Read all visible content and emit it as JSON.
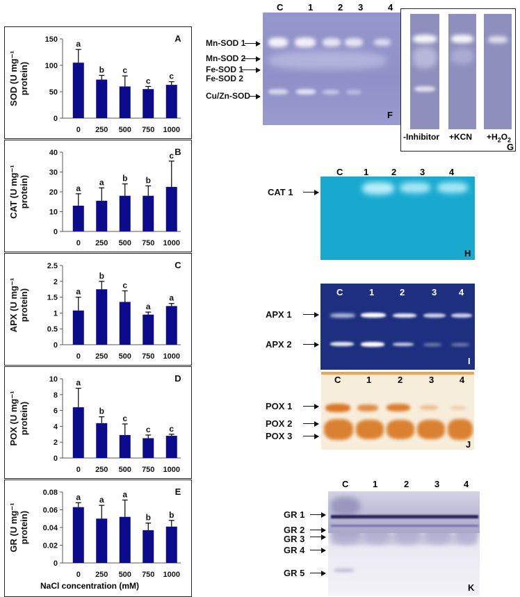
{
  "x_axis_title": "NaCl concentration (mM)",
  "colors": {
    "bar": "#0b0b8c",
    "sod_gel": "#8d8fc6",
    "cat_gel": "#1aaed4",
    "apx_gel": "#1b2e7c",
    "pox_gel": "#f6ead5",
    "gr_gel": "#e7e6f0"
  },
  "chart_data": [
    {
      "type": "bar",
      "panel": "A",
      "ylabel": "SOD (U mg-1 protein)",
      "ylabel_lines": [
        "SOD (U mg⁻¹",
        "protein)"
      ],
      "categories": [
        "0",
        "250",
        "500",
        "750",
        "1000"
      ],
      "values": [
        105,
        73,
        60,
        55,
        63
      ],
      "errors": [
        25,
        8,
        20,
        5,
        6
      ],
      "letters": [
        "a",
        "b",
        "c",
        "c",
        "c"
      ],
      "ylim": [
        0,
        150
      ],
      "yticks": [
        0,
        50,
        100,
        150
      ],
      "ytick_labels": [
        "0",
        "50",
        "100",
        "150"
      ]
    },
    {
      "type": "bar",
      "panel": "B",
      "ylabel": "CAT (U mg-1 protein)",
      "ylabel_lines": [
        "CAT (U mg⁻¹",
        "protein)"
      ],
      "categories": [
        "0",
        "250",
        "500",
        "750",
        "1000"
      ],
      "values": [
        13,
        15.5,
        18,
        18,
        22.5
      ],
      "errors": [
        6,
        6.5,
        6,
        5,
        13
      ],
      "letters": [
        "a",
        "a",
        "b",
        "b",
        "c"
      ],
      "ylim": [
        0,
        40
      ],
      "yticks": [
        0,
        10,
        20,
        30,
        40
      ],
      "ytick_labels": [
        "0",
        "10",
        "20",
        "30",
        "40"
      ]
    },
    {
      "type": "bar",
      "panel": "C",
      "ylabel": "APX (U mg-1 protein)",
      "ylabel_lines": [
        "APX (U mg⁻¹",
        "protein)"
      ],
      "categories": [
        "0",
        "250",
        "500",
        "750",
        "1000"
      ],
      "values": [
        1.08,
        1.75,
        1.35,
        0.95,
        1.22
      ],
      "errors": [
        0.42,
        0.25,
        0.35,
        0.08,
        0.08
      ],
      "letters": [
        "a",
        "b",
        "c",
        "a",
        "a"
      ],
      "ylim": [
        0,
        2.5
      ],
      "yticks": [
        0,
        0.5,
        1,
        1.5,
        2,
        2.5
      ],
      "ytick_labels": [
        "0",
        "0.5",
        "1",
        "1.5",
        "2",
        "2.5"
      ]
    },
    {
      "type": "bar",
      "panel": "D",
      "ylabel": "POX (U mg-1 protein)",
      "ylabel_lines": [
        "POX (U mg⁻¹",
        "protein)"
      ],
      "categories": [
        "0",
        "250",
        "500",
        "750",
        "1000"
      ],
      "values": [
        6.4,
        4.4,
        2.9,
        2.5,
        2.8
      ],
      "errors": [
        2.4,
        0.8,
        1.4,
        0.4,
        0.2
      ],
      "letters": [
        "a",
        "b",
        "c",
        "c",
        "c"
      ],
      "ylim": [
        0,
        10
      ],
      "yticks": [
        0,
        2,
        4,
        6,
        8,
        10
      ],
      "ytick_labels": [
        "0",
        "2",
        "4",
        "6",
        "8",
        "10"
      ]
    },
    {
      "type": "bar",
      "panel": "E",
      "ylabel": "GR (U mg-1 protein)",
      "ylabel_lines": [
        "GR (U mg⁻¹",
        "protein)"
      ],
      "categories": [
        "0",
        "250",
        "500",
        "750",
        "1000"
      ],
      "values": [
        0.063,
        0.05,
        0.052,
        0.037,
        0.041
      ],
      "errors": [
        0.005,
        0.015,
        0.019,
        0.008,
        0.007
      ],
      "letters": [
        "a",
        "a",
        "a",
        "b",
        "b"
      ],
      "ylim": [
        0,
        0.08
      ],
      "yticks": [
        0,
        0.02,
        0.04,
        0.06,
        0.08
      ],
      "ytick_labels": [
        "0",
        "0.02",
        "0.04",
        "0.06",
        "0.08"
      ]
    }
  ],
  "gels": {
    "F": {
      "panel": "F",
      "lanes": [
        "C",
        "1",
        "2",
        "3",
        "4"
      ],
      "bands": [
        "Mn-SOD 1",
        "Mn-SOD 2",
        "Fe-SOD 1",
        "Fe-SOD 2",
        "Cu/Zn-SOD"
      ]
    },
    "G": {
      "panel": "G",
      "lanes": [
        "-Inhibitor",
        "+KCN",
        "+H",
        "2",
        "O",
        "2"
      ]
    },
    "H": {
      "panel": "H",
      "lanes": [
        "C",
        "1",
        "2",
        "3",
        "4"
      ],
      "bands": [
        "CAT 1"
      ]
    },
    "I": {
      "panel": "I",
      "lanes": [
        "C",
        "1",
        "2",
        "3",
        "4"
      ],
      "bands": [
        "APX 1",
        "APX 2"
      ]
    },
    "J": {
      "panel": "J",
      "lanes": [
        "C",
        "1",
        "2",
        "3",
        "4"
      ],
      "bands": [
        "POX 1",
        "POX 2",
        "POX 3"
      ]
    },
    "K": {
      "panel": "K",
      "lanes": [
        "C",
        "1",
        "2",
        "3",
        "4"
      ],
      "bands": [
        "GR 1",
        "GR 2",
        "GR 3",
        "GR 4",
        "GR 5"
      ]
    }
  }
}
